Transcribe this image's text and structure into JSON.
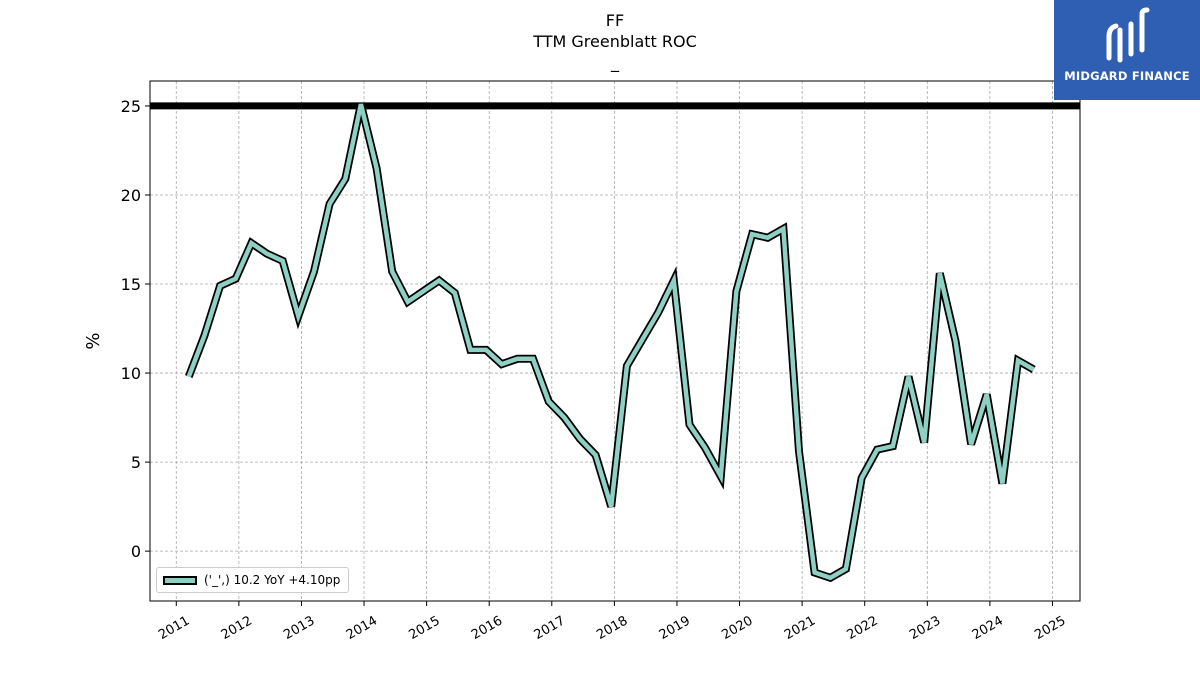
{
  "header": {
    "ticker": "FF",
    "metric": "TTM Greenblatt ROC",
    "subtitle": "_"
  },
  "logo": {
    "text": "MIDGARD FINANCE",
    "color": "#2f5fb3"
  },
  "legend": {
    "label": "('_',) 10.2 YoY +4.10pp"
  },
  "chart_data": {
    "type": "line",
    "title": "FF\nTTM Greenblatt ROC\n_",
    "xlabel": "",
    "ylabel": "%",
    "xlim": [
      2010.58,
      2025.44
    ],
    "ylim": [
      -2.8,
      26.4
    ],
    "x_ticks": [
      "2011",
      "2012",
      "2013",
      "2014",
      "2015",
      "2016",
      "2017",
      "2018",
      "2019",
      "2020",
      "2021",
      "2022",
      "2023",
      "2024",
      "2025"
    ],
    "y_ticks": [
      0,
      5,
      10,
      15,
      20,
      25
    ],
    "grid": true,
    "legend_position": "lower-left",
    "reference_line": 25,
    "series": [
      {
        "name": "('_',) 10.2 YoY +4.10pp",
        "color": "#8fd0c4",
        "outline": "#000000",
        "x": [
          2011.2,
          2011.45,
          2011.7,
          2011.95,
          2012.2,
          2012.45,
          2012.7,
          2012.95,
          2013.2,
          2013.45,
          2013.7,
          2013.95,
          2014.2,
          2014.45,
          2014.7,
          2014.95,
          2015.2,
          2015.45,
          2015.7,
          2015.95,
          2016.2,
          2016.45,
          2016.7,
          2016.95,
          2017.2,
          2017.45,
          2017.7,
          2017.95,
          2018.2,
          2018.45,
          2018.7,
          2018.95,
          2019.2,
          2019.45,
          2019.7,
          2019.95,
          2020.2,
          2020.45,
          2020.7,
          2020.95,
          2021.2,
          2021.45,
          2021.7,
          2021.95,
          2022.2,
          2022.45,
          2022.7,
          2022.95,
          2023.2,
          2023.45,
          2023.7,
          2023.95,
          2024.2,
          2024.45,
          2024.7
        ],
        "values": [
          9.8,
          12.1,
          14.9,
          15.3,
          17.3,
          16.7,
          16.3,
          13.2,
          15.7,
          19.5,
          20.9,
          25.1,
          21.5,
          15.7,
          14.0,
          14.6,
          15.2,
          14.5,
          11.3,
          11.3,
          10.5,
          10.8,
          10.8,
          8.4,
          7.5,
          6.3,
          5.4,
          2.5,
          10.4,
          11.9,
          13.4,
          15.2,
          7.1,
          5.8,
          4.2,
          14.6,
          17.8,
          17.6,
          18.1,
          5.6,
          -1.2,
          -1.5,
          -1.0,
          4.1,
          5.7,
          5.9,
          9.8,
          6.1,
          15.6,
          11.8,
          6.0,
          8.8,
          3.8,
          10.7,
          10.2
        ]
      }
    ]
  }
}
